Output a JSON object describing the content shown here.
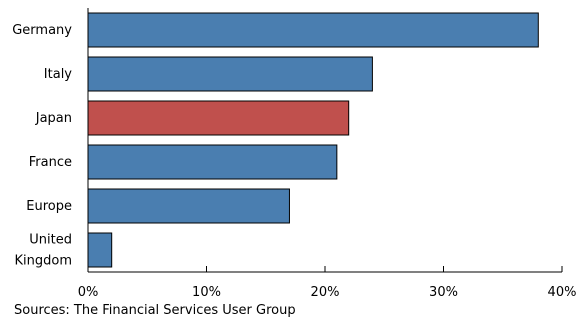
{
  "chart_data": {
    "type": "bar",
    "orientation": "horizontal",
    "categories": [
      "Germany",
      "Italy",
      "Japan",
      "France",
      "Europe",
      "United Kingdom"
    ],
    "category_lines": [
      [
        "Germany"
      ],
      [
        "Italy"
      ],
      [
        "Japan"
      ],
      [
        "France"
      ],
      [
        "Europe"
      ],
      [
        "United",
        "Kingdom"
      ]
    ],
    "values": [
      38,
      24,
      22,
      21,
      17,
      2
    ],
    "highlight_category": "Japan",
    "colors": {
      "default": "#4a7eb0",
      "highlight": "#c0504d",
      "outline": "#000000"
    },
    "xlim": [
      0,
      40
    ],
    "xticks": [
      0,
      10,
      20,
      30,
      40
    ],
    "xtick_labels": [
      "0%",
      "10%",
      "20%",
      "30%",
      "40%"
    ],
    "grid": false,
    "title": "",
    "xlabel": "",
    "ylabel": ""
  },
  "source_note": "Sources: The Financial Services User Group"
}
